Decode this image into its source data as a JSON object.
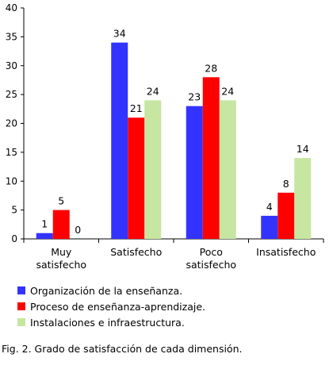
{
  "chart_data": {
    "type": "bar",
    "categories": [
      [
        "Muy",
        "satisfecho"
      ],
      [
        "Satisfecho"
      ],
      [
        "Poco",
        "satisfecho"
      ],
      [
        "Insatisfecho"
      ]
    ],
    "series": [
      {
        "name": "Organización de la enseñanza.",
        "color": "#3333ff",
        "values": [
          1,
          34,
          23,
          4
        ]
      },
      {
        "name": "Proceso de enseñanza-aprendizaje.",
        "color": "#ff0000",
        "values": [
          5,
          21,
          28,
          8
        ]
      },
      {
        "name": "Instalaciones e infraestructura.",
        "color": "#c6e6a1",
        "values": [
          0,
          24,
          24,
          14
        ]
      }
    ],
    "ylim": [
      0,
      40
    ],
    "yticks": [
      "0",
      "5",
      "10",
      "15",
      "20",
      "25",
      "30",
      "35",
      "40"
    ],
    "grid": false,
    "legend_position": "bottom"
  },
  "caption": {
    "label": "Fig. 2.",
    "text": " Grado de satisfacción de cada dimensión."
  }
}
